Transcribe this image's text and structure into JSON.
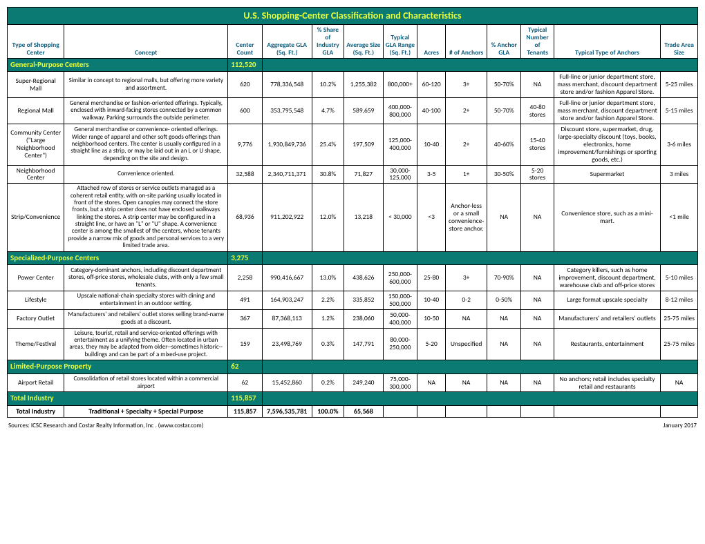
{
  "title": "U.S. Shopping-Center Classification and Characteristics",
  "columns": [
    "Type of Shopping Center",
    "Concept",
    "Center Count",
    "Aggregate GLA (Sq. Ft.)",
    "% Share of Industry GLA",
    "Average Size (Sq. Ft.)",
    "Typical GLA Range (Sq. Ft.)",
    "Acres",
    "# of Anchors",
    "% Anchor GLA",
    "Typical Number of Tenants",
    "Typical Type of Anchors",
    "Trade Area Size"
  ],
  "sections": [
    {
      "name": "General-Purpose Centers",
      "count": "112,520",
      "rows": [
        {
          "type": "Super-Regional Mall",
          "concept": "Similar in concept to regional malls, but offering more variety and assortment.",
          "count": "620",
          "agg": "778,336,548",
          "share": "10.2%",
          "avg": "1,255,382",
          "gla": "800,000+",
          "acres": "60-120",
          "anchors": "3+",
          "pct": "50-70%",
          "tenants": "NA",
          "typanch": "Full-line or junior department store, mass merchant, discount department store and/or fashion Apparel Store.",
          "trade": "5-25 miles"
        },
        {
          "type": "Regional Mall",
          "concept": "General merchandise or fashion-oriented offerings. Typically, enclosed with inward-facing stores connected by a common walkway. Parking surrounds the outside perimeter.",
          "count": "600",
          "agg": "353,795,548",
          "share": "4.7%",
          "avg": "589,659",
          "gla": "400,000-800,000",
          "acres": "40-100",
          "anchors": "2+",
          "pct": "50-70%",
          "tenants": "40-80 stores",
          "typanch": "Full-line or junior department store, mass merchant, discount department store and/or fashion Apparel Store.",
          "trade": "5-15 miles"
        },
        {
          "type": "Community Center (\"Large Neighborhood Center\")",
          "concept": "General merchandise or convenience- oriented offerings. Wider range of apparel and other soft goods offerings than neighborhood centers. The center is usually configured in a straight line as a strip, or may be laid out in an L or U shape, depending on the site and design.",
          "count": "9,776",
          "agg": "1,930,849,736",
          "share": "25.4%",
          "avg": "197,509",
          "gla": "125,000-400,000",
          "acres": "10-40",
          "anchors": "2+",
          "pct": "40-60%",
          "tenants": "15-40 stores",
          "typanch": "Discount store, supermarket, drug, large-specialty discount (toys, books, electronics, home improvement/furnishings or sporting goods, etc.)",
          "trade": "3-6 miles"
        },
        {
          "type": "Neighborhood Center",
          "concept": "Convenience oriented.",
          "count": "32,588",
          "agg": "2,340,711,371",
          "share": "30.8%",
          "avg": "71,827",
          "gla": "30,000-125,000",
          "acres": "3-5",
          "anchors": "1+",
          "pct": "30-50%",
          "tenants": "5-20 stores",
          "typanch": "Supermarket",
          "trade": "3 miles"
        },
        {
          "type": "Strip/Convenience",
          "concept": "Attached row of stores or service outlets managed as a coherent retail entity, with on-site parking usually located in front of the stores. Open canopies may connect the store fronts, but a strip center does not have enclosed walkways linking the stores. A strip center may be configured in a straight line, or have an \"L\" or \"U\" shape. A convenience center is among the smallest of the centers, whose tenants provide a narrow mix of goods and personal services to a very limited trade area.",
          "count": "68,936",
          "agg": "911,202,922",
          "share": "12.0%",
          "avg": "13,218",
          "gla": "< 30,000",
          "acres": "<3",
          "anchors": "Anchor-less or a small convenience-store anchor.",
          "anchors_small": true,
          "pct": "NA",
          "tenants": "NA",
          "typanch": "Convenience store, such as a mini-mart.",
          "trade": "<1 mile"
        }
      ]
    },
    {
      "name": "Specialized-Purpose Centers",
      "count": "3,275",
      "rows": [
        {
          "type": "Power Center",
          "concept": "Category-dominant anchors, including discount department stores, off-price stores, wholesale clubs, with only a few small tenants.",
          "count": "2,258",
          "agg": "990,416,667",
          "share": "13.0%",
          "avg": "438,626",
          "gla": "250,000-600,000",
          "acres": "25-80",
          "anchors": "3+",
          "pct": "70-90%",
          "tenants": "NA",
          "typanch": "Category killers, such as home improvement, discount department, warehouse club and off-price stores",
          "trade": "5-10 miles"
        },
        {
          "type": "Lifestyle",
          "concept": "Upscale national-chain specialty stores with dining and entertainment in an outdoor setting.",
          "count": "491",
          "agg": "164,903,247",
          "share": "2.2%",
          "avg": "335,852",
          "gla": "150,000-500,000",
          "acres": "10-40",
          "anchors": "0-2",
          "pct": "0-50%",
          "tenants": "NA",
          "typanch": "Large format upscale specialty",
          "trade": "8-12 miles"
        },
        {
          "type": "Factory Outlet",
          "concept": "Manufacturers' and retailers' outlet stores selling brand-name goods at a discount.",
          "count": "367",
          "agg": "87,368,113",
          "share": "1.2%",
          "avg": "238,060",
          "gla": "50,000-400,000",
          "acres": "10-50",
          "anchors": "NA",
          "pct": "NA",
          "tenants": "NA",
          "typanch": "Manufacturers' and retailers' outlets",
          "trade": "25-75 miles"
        },
        {
          "type": "Theme/Festival",
          "concept": "Leisure, tourist, retail and service-oriented offerings with entertaiment as a unifying theme. Often located in urban areas, they may be adapted from older--sometimes historic--buildings and can be part of a mixed-use project.",
          "count": "159",
          "agg": "23,498,769",
          "share": "0.3%",
          "avg": "147,791",
          "gla": "80,000-250,000",
          "acres": "5-20",
          "anchors": "Unspecified",
          "anchors_small": true,
          "pct": "NA",
          "tenants": "NA",
          "typanch": "Restaurants, entertainment",
          "trade": "25-75 miles"
        }
      ]
    },
    {
      "name": "Limited-Purpose Property",
      "count": "62",
      "rows": [
        {
          "type": "Airport Retail",
          "concept": "Consolidation of retail stores located within a commercial airport",
          "count": "62",
          "agg": "15,452,860",
          "share": "0.2%",
          "avg": "249,240",
          "gla": "75,000-300,000",
          "acres": "NA",
          "anchors": "NA",
          "pct": "NA",
          "tenants": "NA",
          "typanch": "No anchors; retail includes specialty retail and restaurants",
          "trade": "NA"
        }
      ]
    }
  ],
  "total": {
    "label": "Total Industry",
    "count": "115,857",
    "row": {
      "type": "Total Industry",
      "concept": "Traditional + Specialty + Special Purpose",
      "count": "115,857",
      "agg": "7,596,535,781",
      "share": "100.0%",
      "avg": "65,568"
    }
  },
  "footer": {
    "source": "Sources: ICSC Research and Costar Realty Information, Inc . (www.costar.com)",
    "date": "January 2017"
  },
  "colors": {
    "header_bg": "#0b7a73",
    "header_fg": "#e8ff3a",
    "col_header_fg": "#0b5a7a"
  }
}
